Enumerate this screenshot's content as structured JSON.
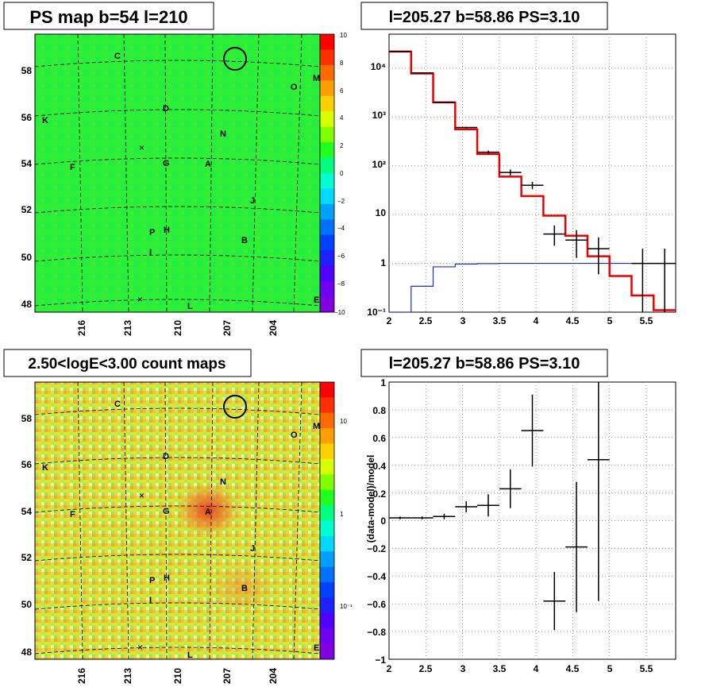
{
  "map_top": {
    "title": "PS map b=54 l=210",
    "lat_ticks": [
      "58",
      "56",
      "54",
      "52",
      "50",
      "48"
    ],
    "lon_ticks": [
      "216",
      "213",
      "210",
      "207",
      "204"
    ],
    "colorbar_ticks": [
      "10",
      "8",
      "6",
      "4",
      "2",
      "0",
      "−2",
      "−4",
      "−6",
      "−8",
      "−10"
    ],
    "colorbar_range": [
      -10,
      10
    ],
    "sources": [
      "C",
      "D",
      "K",
      "N",
      "M",
      "O",
      "F",
      "G",
      "A",
      "J",
      "P",
      "H",
      "B",
      "I",
      "L",
      "E"
    ]
  },
  "map_bottom": {
    "title": "2.50<logE<3.00 count maps",
    "lat_ticks": [
      "58",
      "56",
      "54",
      "52",
      "50",
      "48"
    ],
    "lon_ticks": [
      "216",
      "213",
      "210",
      "207",
      "204"
    ],
    "colorbar_ticks": [
      "10",
      "1",
      "10⁻¹"
    ],
    "colorbar_scale": "log",
    "sources": [
      "C",
      "D",
      "K",
      "N",
      "M",
      "O",
      "F",
      "G",
      "A",
      "J",
      "P",
      "H",
      "B",
      "I",
      "L",
      "E"
    ]
  },
  "spectrum": {
    "title": "l=205.27 b=58.86 PS=3.10",
    "x_ticks": [
      "2",
      "2.5",
      "3",
      "3.5",
      "4",
      "4.5",
      "5",
      "5.5"
    ],
    "y_ticks": [
      "10⁻¹",
      "1",
      "10",
      "10²",
      "10³",
      "10⁴"
    ]
  },
  "residual": {
    "title": "l=205.27 b=58.86 PS=3.10",
    "ylabel": "(data-model)/model",
    "x_ticks": [
      "2",
      "2.5",
      "3",
      "3.5",
      "4",
      "4.5",
      "5",
      "5.5"
    ],
    "y_ticks": [
      "1",
      "0.8",
      "0.6",
      "0.4",
      "0.2",
      "0",
      "−0.2",
      "−0.4",
      "−0.6",
      "−0.8",
      "−1"
    ]
  },
  "chart_data": [
    {
      "type": "heatmap",
      "title": "PS map b=54 l=210",
      "xlabel": "",
      "ylabel": "",
      "xlim": [
        218,
        201.6
      ],
      "ylim": [
        47.8,
        59.2
      ],
      "colorbar": {
        "min": -10,
        "max": 10
      },
      "value_level": "mostly 0 to 2 (uniform green)"
    },
    {
      "type": "heatmap",
      "title": "2.50<logE<3.00 count maps",
      "xlabel": "",
      "ylabel": "",
      "xlim": [
        218,
        201.6
      ],
      "ylim": [
        47.8,
        59.2
      ],
      "colorbar": {
        "scale": "log",
        "ticks": [
          10,
          1,
          0.1
        ]
      },
      "notes": "excess near source A"
    },
    {
      "type": "line",
      "title": "l=205.27 b=58.86 PS=3.10",
      "xlabel": "",
      "ylabel": "",
      "xlim": [
        2,
        5.9
      ],
      "ylim": [
        0.1,
        50000
      ],
      "yscale": "log",
      "grid": true,
      "bin_edges": [
        2.0,
        2.3,
        2.6,
        2.9,
        3.2,
        3.5,
        3.8,
        4.1,
        4.4,
        4.7,
        5.0,
        5.3,
        5.6,
        5.9
      ],
      "series": [
        {
          "values": [
            22000,
            7800,
            2000,
            560,
            175,
            60,
            24,
            9.5,
            3.7,
            1.4,
            0.55,
            0.22,
            0.11
          ]
        },
        {
          "values": [
            0.1,
            0.34,
            0.85,
            0.97,
            0.99,
            1.0,
            1.0,
            1.0,
            1.0,
            1.0,
            1.0,
            1.0,
            1.0
          ]
        }
      ],
      "points": [
        {
          "x": 2.15,
          "y": 22000,
          "xerr": 0.15,
          "ylo": 21500,
          "yhi": 22500
        },
        {
          "x": 2.45,
          "y": 8000,
          "xerr": 0.15,
          "ylo": 7800,
          "yhi": 8200
        },
        {
          "x": 2.75,
          "y": 2000,
          "xerr": 0.15,
          "ylo": 1950,
          "yhi": 2050
        },
        {
          "x": 3.05,
          "y": 610,
          "xerr": 0.15,
          "ylo": 590,
          "yhi": 630
        },
        {
          "x": 3.35,
          "y": 190,
          "xerr": 0.15,
          "ylo": 175,
          "yhi": 205
        },
        {
          "x": 3.65,
          "y": 73,
          "xerr": 0.15,
          "ylo": 63,
          "yhi": 84
        },
        {
          "x": 3.95,
          "y": 40,
          "xerr": 0.15,
          "ylo": 33,
          "yhi": 47
        },
        {
          "x": 4.25,
          "y": 4.0,
          "xerr": 0.15,
          "ylo": 2.3,
          "yhi": 6.0
        },
        {
          "x": 4.55,
          "y": 3.0,
          "xerr": 0.15,
          "ylo": 1.3,
          "yhi": 4.8
        },
        {
          "x": 4.85,
          "y": 2.0,
          "xerr": 0.15,
          "ylo": 0.6,
          "yhi": 3.4
        },
        {
          "x": 5.45,
          "y": 1.0,
          "xerr": 0.15,
          "ylo": 0.1,
          "yhi": 2.0
        },
        {
          "x": 5.75,
          "y": 1.0,
          "xerr": 0.15,
          "ylo": 0.1,
          "yhi": 2.0
        }
      ]
    },
    {
      "type": "scatter",
      "title": "l=205.27 b=58.86 PS=3.10",
      "xlabel": "",
      "ylabel": "(data-model)/model",
      "xlim": [
        2,
        5.9
      ],
      "ylim": [
        -1,
        1
      ],
      "grid": true,
      "points": [
        {
          "x": 2.15,
          "y": 0.02,
          "xerr": 0.15,
          "yerr": 0.01
        },
        {
          "x": 2.45,
          "y": 0.02,
          "xerr": 0.15,
          "yerr": 0.01
        },
        {
          "x": 2.75,
          "y": 0.03,
          "xerr": 0.15,
          "yerr": 0.02
        },
        {
          "x": 3.05,
          "y": 0.1,
          "xerr": 0.15,
          "yerr": 0.04
        },
        {
          "x": 3.35,
          "y": 0.11,
          "xerr": 0.15,
          "yerr": 0.08
        },
        {
          "x": 3.65,
          "y": 0.23,
          "xerr": 0.15,
          "yerr": 0.14
        },
        {
          "x": 3.95,
          "y": 0.65,
          "xerr": 0.15,
          "yerr": 0.26
        },
        {
          "x": 4.25,
          "y": -0.58,
          "xerr": 0.15,
          "yerr": 0.21
        },
        {
          "x": 4.55,
          "y": -0.19,
          "xerr": 0.15,
          "yerr": 0.47
        },
        {
          "x": 4.85,
          "y": 0.44,
          "xerr": 0.15,
          "yerr": 1.02
        }
      ]
    }
  ]
}
